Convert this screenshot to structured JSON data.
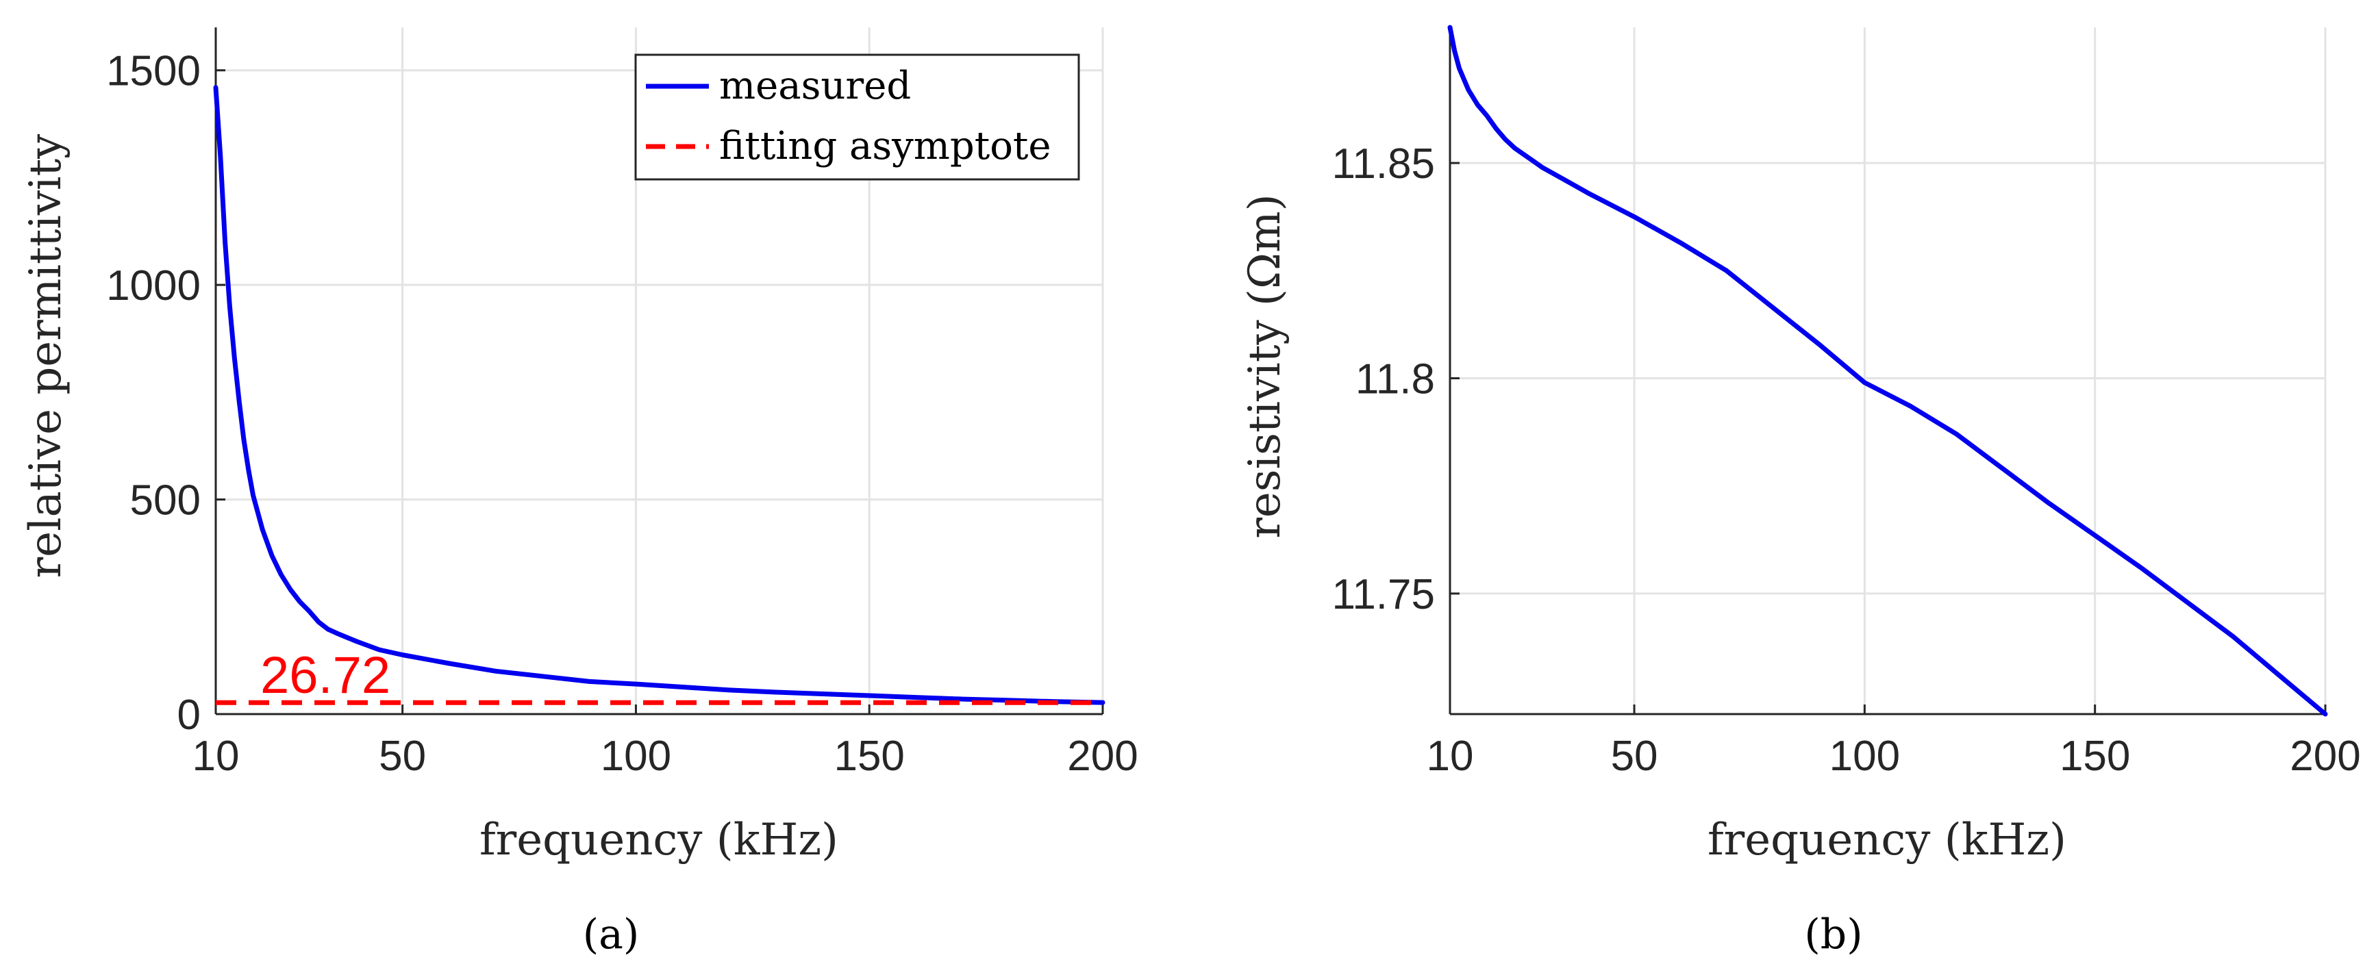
{
  "chart_data": [
    {
      "id": "a",
      "type": "line",
      "panel_label": "(a)",
      "xlabel": "frequency (kHz)",
      "ylabel": "relative permittivity",
      "xlim": [
        10,
        200
      ],
      "ylim": [
        0,
        1600
      ],
      "xticks": [
        10,
        50,
        100,
        150,
        200
      ],
      "yticks": [
        0,
        500,
        1000,
        1500
      ],
      "grid": true,
      "legend_position": "top-right",
      "series": [
        {
          "name": "measured",
          "color": "#0000ee",
          "style": "solid",
          "x": [
            10,
            11,
            12,
            13,
            14,
            15,
            16,
            17,
            18,
            20,
            22,
            24,
            26,
            28,
            30,
            32,
            34,
            36,
            40,
            45,
            50,
            60,
            70,
            80,
            90,
            100,
            110,
            120,
            130,
            140,
            150,
            160,
            170,
            180,
            190,
            200
          ],
          "y": [
            1460,
            1300,
            1100,
            950,
            830,
            730,
            640,
            570,
            510,
            430,
            370,
            325,
            290,
            262,
            240,
            215,
            198,
            188,
            170,
            150,
            138,
            118,
            100,
            88,
            76,
            70,
            63,
            56,
            51,
            47,
            43,
            39,
            35,
            32,
            29,
            27
          ]
        },
        {
          "name": "fitting asymptote",
          "color": "#ff0000",
          "style": "dashed",
          "x": [
            10,
            200
          ],
          "y": [
            26.72,
            26.72
          ]
        }
      ],
      "annotations": [
        {
          "text": "26.72",
          "x": 13,
          "y": 26.72,
          "color": "#ff0000"
        }
      ]
    },
    {
      "id": "b",
      "type": "line",
      "panel_label": "(b)",
      "xlabel": "frequency (kHz)",
      "ylabel": "resistivity (Ωm)",
      "xlim": [
        10,
        200
      ],
      "ylim": [
        11.722,
        11.8815
      ],
      "xticks": [
        10,
        50,
        100,
        150,
        200
      ],
      "yticks": [
        11.75,
        11.8,
        11.85
      ],
      "ytick_labels": [
        "11.75",
        "11.8",
        "11.85"
      ],
      "grid": true,
      "series": [
        {
          "name": "resistivity",
          "color": "#0000ee",
          "style": "solid",
          "x": [
            10,
            11,
            12,
            14,
            16,
            18,
            20,
            22,
            24,
            26,
            28,
            30,
            35,
            40,
            50,
            60,
            70,
            80,
            90,
            100,
            110,
            120,
            130,
            140,
            150,
            160,
            170,
            180,
            190,
            200
          ],
          "y": [
            11.8815,
            11.876,
            11.872,
            11.867,
            11.8635,
            11.861,
            11.858,
            11.8555,
            11.8535,
            11.852,
            11.8505,
            11.849,
            11.846,
            11.843,
            11.8375,
            11.8315,
            11.825,
            11.8165,
            11.808,
            11.799,
            11.7935,
            11.787,
            11.779,
            11.771,
            11.7635,
            11.756,
            11.748,
            11.74,
            11.731,
            11.722
          ]
        }
      ]
    }
  ]
}
